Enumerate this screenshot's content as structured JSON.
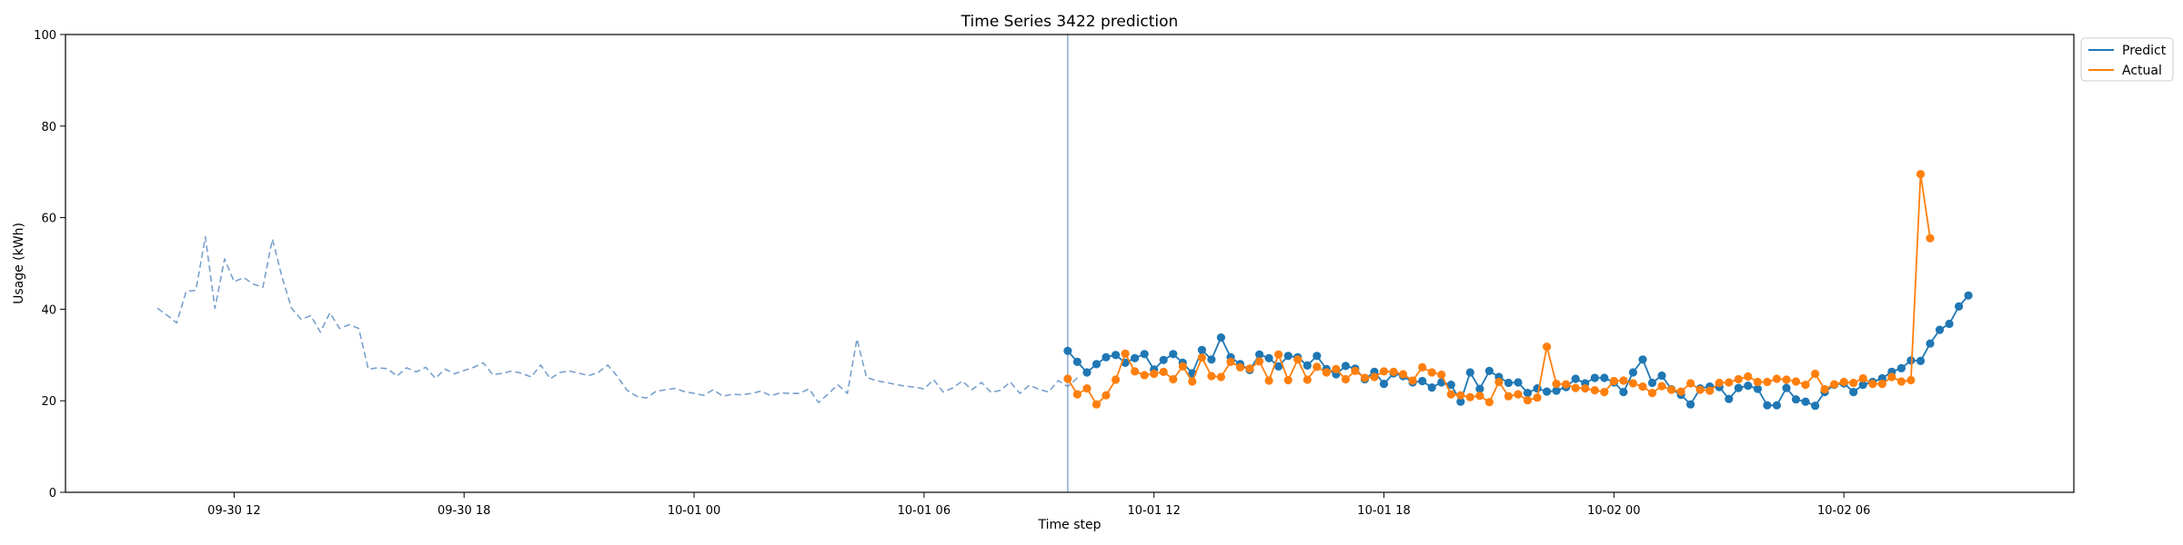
{
  "chart_data": {
    "type": "line",
    "title": "Time Series 3422 prediction",
    "xlabel": "Time step",
    "ylabel": "Usage (kWh)",
    "ylim": [
      0,
      100
    ],
    "yticks": [
      0,
      20,
      40,
      60,
      80,
      100
    ],
    "xlim": [
      "2022-09-30 07:36",
      "2022-10-02 12:00"
    ],
    "xticks": [
      {
        "t": "2022-09-30 12:00",
        "label": "09-30 12"
      },
      {
        "t": "2022-09-30 18:00",
        "label": "09-30 18"
      },
      {
        "t": "2022-10-01 00:00",
        "label": "10-01 00"
      },
      {
        "t": "2022-10-01 06:00",
        "label": "10-01 06"
      },
      {
        "t": "2022-10-01 12:00",
        "label": "10-01 12"
      },
      {
        "t": "2022-10-01 18:00",
        "label": "10-01 18"
      },
      {
        "t": "2022-10-02 00:00",
        "label": "10-02 00"
      },
      {
        "t": "2022-10-02 06:00",
        "label": "10-02 06"
      }
    ],
    "grid": false,
    "legend_position": "upper right, outside plot",
    "forecast_start": "2022-10-01 09:45",
    "series": [
      {
        "role": "history",
        "color": "#7aa0cc",
        "style": "dashed",
        "start": "2022-09-30 10:00",
        "interval_minutes": 15,
        "values": [
          40.2,
          38.7,
          37.0,
          43.9,
          44.1,
          55.8,
          40.2,
          51.0,
          46.0,
          46.9,
          45.5,
          44.8,
          55.3,
          47.0,
          40.2,
          37.8,
          38.6,
          35.0,
          39.2,
          35.8,
          36.6,
          35.8,
          26.9,
          27.2,
          27.0,
          25.4,
          27.2,
          26.3,
          27.3,
          24.9,
          26.9,
          25.9,
          26.6,
          27.3,
          28.3,
          25.7,
          26.0,
          26.5,
          26.0,
          25.2,
          27.8,
          24.8,
          26.2,
          26.5,
          26.0,
          25.5,
          26.2,
          27.8,
          25.3,
          22.3,
          21.0,
          20.6,
          22.0,
          22.4,
          22.7,
          22.0,
          21.6,
          21.2,
          22.4,
          21.0,
          21.4,
          21.3,
          21.6,
          22.1,
          21.1,
          21.7,
          21.6,
          21.6,
          22.6,
          19.6,
          21.5,
          23.5,
          21.6,
          33.5,
          25.1,
          24.4,
          24.0,
          23.6,
          23.2,
          23.0,
          22.6,
          24.6,
          21.9,
          22.8,
          24.3,
          22.4,
          24.0,
          21.8,
          22.3,
          24.1,
          21.6,
          23.4,
          22.5,
          21.9,
          24.4,
          23.1,
          25.0
        ]
      },
      {
        "name": "Predict",
        "role": "prediction",
        "color": "#1f77b4",
        "markers": true,
        "start": "2022-10-01 09:45",
        "interval_minutes": 15,
        "values": [
          30.9,
          28.5,
          26.2,
          28.0,
          29.5,
          30.0,
          28.3,
          29.3,
          30.2,
          26.8,
          28.9,
          30.2,
          28.3,
          26.0,
          31.1,
          29.0,
          33.8,
          29.5,
          28.0,
          26.7,
          30.1,
          29.3,
          27.5,
          29.8,
          29.5,
          27.7,
          29.8,
          26.9,
          25.8,
          27.6,
          27.0,
          24.7,
          26.3,
          23.7,
          26.0,
          25.4,
          24.0,
          24.3,
          22.9,
          24.0,
          23.5,
          19.8,
          26.2,
          22.6,
          26.5,
          25.2,
          23.9,
          24.0,
          21.7,
          22.7,
          22.0,
          22.2,
          23.0,
          24.8,
          23.8,
          25.0,
          25.0,
          24.0,
          21.9,
          26.2,
          29.0,
          23.9,
          25.5,
          22.5,
          21.3,
          19.2,
          22.7,
          23.1,
          23.0,
          20.4,
          22.8,
          23.3,
          22.6,
          19.0,
          19.0,
          22.8,
          20.3,
          19.8,
          18.9,
          21.9,
          23.5,
          23.8,
          21.9,
          23.5,
          24.1,
          24.9,
          26.3,
          27.1,
          28.8,
          28.7,
          32.5,
          35.5,
          36.8,
          40.6,
          43.0
        ]
      },
      {
        "name": "Actual",
        "role": "actual",
        "color": "#ff7f0e",
        "markers": true,
        "start": "2022-10-01 09:45",
        "interval_minutes": 15,
        "values": [
          24.8,
          21.4,
          22.7,
          19.2,
          21.2,
          24.6,
          30.3,
          26.4,
          25.6,
          25.9,
          26.3,
          24.7,
          27.5,
          24.2,
          29.4,
          25.4,
          25.2,
          28.5,
          27.3,
          27.0,
          28.6,
          24.4,
          30.1,
          24.5,
          29.0,
          24.6,
          27.4,
          26.2,
          26.9,
          24.7,
          26.5,
          25.0,
          25.2,
          26.4,
          26.3,
          25.8,
          24.4,
          27.3,
          26.2,
          25.7,
          21.4,
          21.2,
          20.8,
          21.1,
          19.7,
          24.1,
          21.0,
          21.4,
          20.1,
          20.7,
          31.8,
          23.7,
          23.6,
          22.8,
          22.7,
          22.3,
          21.9,
          24.3,
          24.4,
          23.8,
          23.1,
          21.7,
          23.2,
          22.4,
          22.0,
          23.8,
          22.4,
          22.2,
          23.9,
          24.0,
          24.7,
          25.3,
          24.1,
          24.1,
          24.8,
          24.6,
          24.2,
          23.5,
          25.9,
          22.5,
          23.6,
          24.1,
          23.9,
          24.9,
          23.7,
          23.7,
          25.2,
          24.2,
          24.5,
          69.5,
          55.5
        ]
      }
    ]
  }
}
